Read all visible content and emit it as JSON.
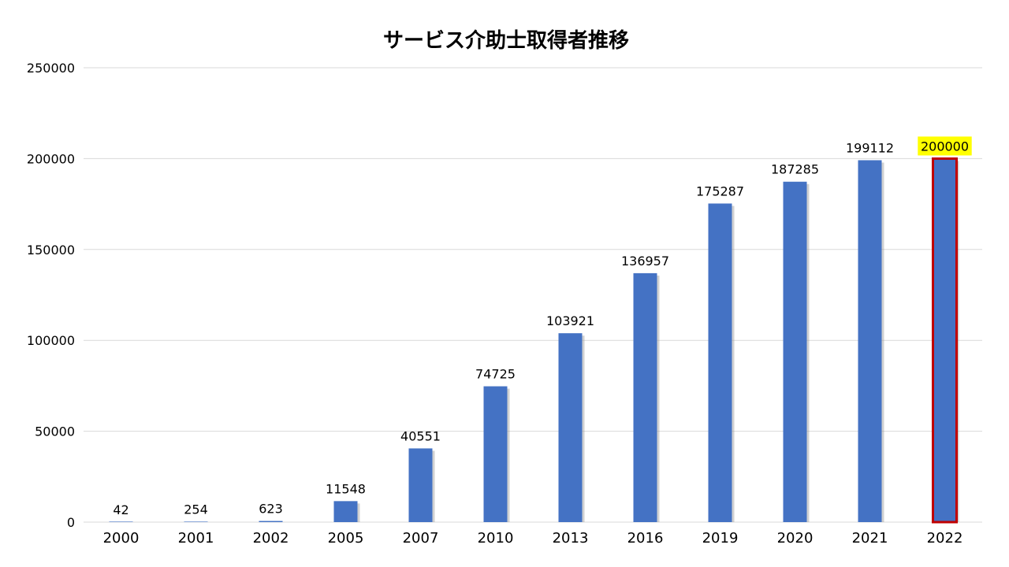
{
  "chart_data": {
    "type": "bar",
    "title": "サービス介助士取得者推移",
    "xlabel": "",
    "ylabel": "",
    "categories": [
      "2000",
      "2001",
      "2002",
      "2005",
      "2007",
      "2010",
      "2013",
      "2016",
      "2019",
      "2020",
      "2021",
      "2022"
    ],
    "values": [
      42,
      254,
      623,
      11548,
      40551,
      74725,
      103921,
      136957,
      175287,
      187285,
      199112,
      200000
    ],
    "data_labels": [
      "42",
      "254",
      "623",
      "11548",
      "40551",
      "74725",
      "103921",
      "136957",
      "175287",
      "187285",
      "199112",
      "200000"
    ],
    "ylim": [
      0,
      250000
    ],
    "yticks": [
      0,
      50000,
      100000,
      150000,
      200000,
      250000
    ],
    "ytick_labels": [
      "0",
      "50000",
      "100000",
      "150000",
      "200000",
      "250000"
    ],
    "grid": true,
    "highlighted_category": "2022",
    "colors": {
      "bar": "#4472C4",
      "bar_shadow": "#9a9a9a",
      "grid": "#d9d9d9",
      "axis": "#d9d9d9",
      "highlight_border": "#C00000",
      "highlight_label_bg": "#FFFF00",
      "text": "#000000"
    }
  }
}
